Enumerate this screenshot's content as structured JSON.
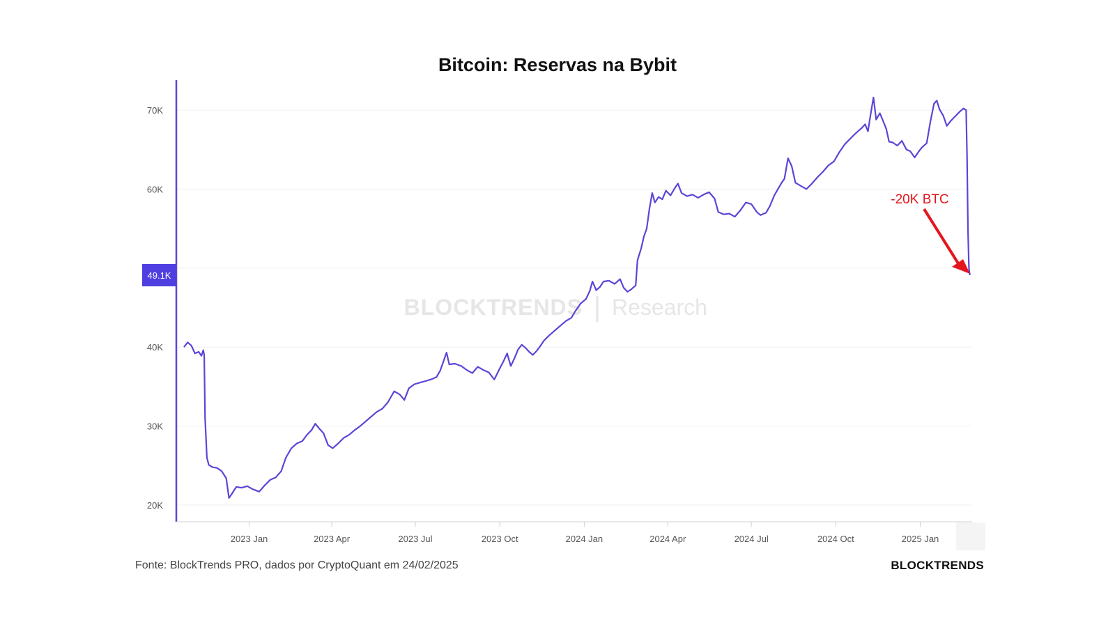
{
  "chart_data": {
    "type": "line",
    "title": "Bitcoin: Reservas na Bybit",
    "xlabel": "",
    "ylabel": "",
    "ylim": [
      18000,
      74000
    ],
    "yticks": [
      20000,
      30000,
      40000,
      60000,
      70000
    ],
    "ytick_labels": [
      "20K",
      "30K",
      "40K",
      "60K",
      "70K"
    ],
    "xticks": [
      "2023-01-01",
      "2023-04-01",
      "2023-07-01",
      "2023-10-01",
      "2024-01-01",
      "2024-04-01",
      "2024-07-01",
      "2024-10-01",
      "2025-01-01"
    ],
    "xtick_labels": [
      "2023 Jan",
      "2023 Apr",
      "2023 Jul",
      "2023 Oct",
      "2024 Jan",
      "2024 Apr",
      "2024 Jul",
      "2024 Oct",
      "2025 Jan"
    ],
    "xlim": [
      "2022-10-22",
      "2025-02-25"
    ],
    "grid": true,
    "current_value_label": "49.1K",
    "current_value": 49100,
    "annotation": {
      "text": "-20K BTC",
      "color": "#e3161b"
    },
    "line_color": "#5a46d6",
    "series": [
      {
        "name": "",
        "points": [
          [
            "2022-10-22",
            40000
          ],
          [
            "2022-10-26",
            40600
          ],
          [
            "2022-10-30",
            40200
          ],
          [
            "2022-11-03",
            39200
          ],
          [
            "2022-11-07",
            39400
          ],
          [
            "2022-11-10",
            38900
          ],
          [
            "2022-11-12",
            39600
          ],
          [
            "2022-11-13",
            39000
          ],
          [
            "2022-11-14",
            31000
          ],
          [
            "2022-11-16",
            26000
          ],
          [
            "2022-11-18",
            25100
          ],
          [
            "2022-11-22",
            24800
          ],
          [
            "2022-11-27",
            24700
          ],
          [
            "2022-12-02",
            24300
          ],
          [
            "2022-12-07",
            23400
          ],
          [
            "2022-12-10",
            20900
          ],
          [
            "2022-12-13",
            21400
          ],
          [
            "2022-12-18",
            22300
          ],
          [
            "2022-12-24",
            22200
          ],
          [
            "2022-12-30",
            22400
          ],
          [
            "2023-01-05",
            22000
          ],
          [
            "2023-01-12",
            21700
          ],
          [
            "2023-01-18",
            22500
          ],
          [
            "2023-01-24",
            23200
          ],
          [
            "2023-01-30",
            23500
          ],
          [
            "2023-02-05",
            24300
          ],
          [
            "2023-02-10",
            26000
          ],
          [
            "2023-02-16",
            27200
          ],
          [
            "2023-02-22",
            27800
          ],
          [
            "2023-02-28",
            28100
          ],
          [
            "2023-03-05",
            28900
          ],
          [
            "2023-03-10",
            29500
          ],
          [
            "2023-03-14",
            30300
          ],
          [
            "2023-03-19",
            29600
          ],
          [
            "2023-03-23",
            29100
          ],
          [
            "2023-03-28",
            27600
          ],
          [
            "2023-04-02",
            27200
          ],
          [
            "2023-04-08",
            27800
          ],
          [
            "2023-04-14",
            28500
          ],
          [
            "2023-04-20",
            28900
          ],
          [
            "2023-04-26",
            29500
          ],
          [
            "2023-05-02",
            30000
          ],
          [
            "2023-05-08",
            30600
          ],
          [
            "2023-05-14",
            31200
          ],
          [
            "2023-05-20",
            31800
          ],
          [
            "2023-05-26",
            32200
          ],
          [
            "2023-06-01",
            33000
          ],
          [
            "2023-06-05",
            33800
          ],
          [
            "2023-06-08",
            34400
          ],
          [
            "2023-06-14",
            34000
          ],
          [
            "2023-06-19",
            33300
          ],
          [
            "2023-06-24",
            34800
          ],
          [
            "2023-06-30",
            35300
          ],
          [
            "2023-07-06",
            35500
          ],
          [
            "2023-07-12",
            35700
          ],
          [
            "2023-07-18",
            35900
          ],
          [
            "2023-07-24",
            36200
          ],
          [
            "2023-07-28",
            37000
          ],
          [
            "2023-08-01",
            38300
          ],
          [
            "2023-08-04",
            39300
          ],
          [
            "2023-08-07",
            37800
          ],
          [
            "2023-08-13",
            37900
          ],
          [
            "2023-08-20",
            37600
          ],
          [
            "2023-08-26",
            37100
          ],
          [
            "2023-09-01",
            36700
          ],
          [
            "2023-09-07",
            37500
          ],
          [
            "2023-09-13",
            37100
          ],
          [
            "2023-09-19",
            36800
          ],
          [
            "2023-09-25",
            35900
          ],
          [
            "2023-10-01",
            37300
          ],
          [
            "2023-10-05",
            38200
          ],
          [
            "2023-10-09",
            39200
          ],
          [
            "2023-10-13",
            37600
          ],
          [
            "2023-10-17",
            38600
          ],
          [
            "2023-10-21",
            39700
          ],
          [
            "2023-10-25",
            40300
          ],
          [
            "2023-10-29",
            39900
          ],
          [
            "2023-11-02",
            39400
          ],
          [
            "2023-11-06",
            39000
          ],
          [
            "2023-11-10",
            39500
          ],
          [
            "2023-11-14",
            40100
          ],
          [
            "2023-11-18",
            40800
          ],
          [
            "2023-11-24",
            41500
          ],
          [
            "2023-11-30",
            42100
          ],
          [
            "2023-12-06",
            42700
          ],
          [
            "2023-12-12",
            43300
          ],
          [
            "2023-12-18",
            43700
          ],
          [
            "2023-12-22",
            44500
          ],
          [
            "2023-12-28",
            45500
          ],
          [
            "2024-01-03",
            46100
          ],
          [
            "2024-01-07",
            47100
          ],
          [
            "2024-01-10",
            48300
          ],
          [
            "2024-01-14",
            47200
          ],
          [
            "2024-01-18",
            47600
          ],
          [
            "2024-01-22",
            48300
          ],
          [
            "2024-01-28",
            48400
          ],
          [
            "2024-02-03",
            48000
          ],
          [
            "2024-02-09",
            48600
          ],
          [
            "2024-02-13",
            47500
          ],
          [
            "2024-02-17",
            47000
          ],
          [
            "2024-02-21",
            47300
          ],
          [
            "2024-02-26",
            47800
          ],
          [
            "2024-02-28",
            51000
          ],
          [
            "2024-03-03",
            52500
          ],
          [
            "2024-03-06",
            54000
          ],
          [
            "2024-03-09",
            55000
          ],
          [
            "2024-03-12",
            57500
          ],
          [
            "2024-03-15",
            59500
          ],
          [
            "2024-03-18",
            58300
          ],
          [
            "2024-03-22",
            59000
          ],
          [
            "2024-03-26",
            58700
          ],
          [
            "2024-03-30",
            59800
          ],
          [
            "2024-04-04",
            59200
          ],
          [
            "2024-04-08",
            60000
          ],
          [
            "2024-04-12",
            60700
          ],
          [
            "2024-04-16",
            59500
          ],
          [
            "2024-04-22",
            59100
          ],
          [
            "2024-04-28",
            59300
          ],
          [
            "2024-05-04",
            58900
          ],
          [
            "2024-05-10",
            59300
          ],
          [
            "2024-05-16",
            59600
          ],
          [
            "2024-05-22",
            58800
          ],
          [
            "2024-05-26",
            57100
          ],
          [
            "2024-06-01",
            56800
          ],
          [
            "2024-06-07",
            56900
          ],
          [
            "2024-06-13",
            56500
          ],
          [
            "2024-06-19",
            57300
          ],
          [
            "2024-06-25",
            58300
          ],
          [
            "2024-07-01",
            58100
          ],
          [
            "2024-07-07",
            57100
          ],
          [
            "2024-07-11",
            56700
          ],
          [
            "2024-07-17",
            57000
          ],
          [
            "2024-07-21",
            57800
          ],
          [
            "2024-07-26",
            59200
          ],
          [
            "2024-07-30",
            60000
          ],
          [
            "2024-08-03",
            60800
          ],
          [
            "2024-08-06",
            61300
          ],
          [
            "2024-08-10",
            63900
          ],
          [
            "2024-08-14",
            62900
          ],
          [
            "2024-08-18",
            60800
          ],
          [
            "2024-08-24",
            60400
          ],
          [
            "2024-08-30",
            60000
          ],
          [
            "2024-09-05",
            60700
          ],
          [
            "2024-09-11",
            61500
          ],
          [
            "2024-09-17",
            62200
          ],
          [
            "2024-09-23",
            63000
          ],
          [
            "2024-09-29",
            63500
          ],
          [
            "2024-10-05",
            64700
          ],
          [
            "2024-10-11",
            65700
          ],
          [
            "2024-10-17",
            66400
          ],
          [
            "2024-10-23",
            67100
          ],
          [
            "2024-10-29",
            67700
          ],
          [
            "2024-11-02",
            68200
          ],
          [
            "2024-11-05",
            67300
          ],
          [
            "2024-11-08",
            69500
          ],
          [
            "2024-11-11",
            71600
          ],
          [
            "2024-11-14",
            68800
          ],
          [
            "2024-11-18",
            69600
          ],
          [
            "2024-11-22",
            68500
          ],
          [
            "2024-11-25",
            67600
          ],
          [
            "2024-11-28",
            66000
          ],
          [
            "2024-12-02",
            65900
          ],
          [
            "2024-12-07",
            65500
          ],
          [
            "2024-12-12",
            66100
          ],
          [
            "2024-12-17",
            65000
          ],
          [
            "2024-12-21",
            64800
          ],
          [
            "2024-12-26",
            64000
          ],
          [
            "2024-12-30",
            64700
          ],
          [
            "2025-01-03",
            65300
          ],
          [
            "2025-01-08",
            65800
          ],
          [
            "2025-01-12",
            68500
          ],
          [
            "2025-01-16",
            70800
          ],
          [
            "2025-01-19",
            71200
          ],
          [
            "2025-01-22",
            70100
          ],
          [
            "2025-01-26",
            69300
          ],
          [
            "2025-01-30",
            68000
          ],
          [
            "2025-02-03",
            68600
          ],
          [
            "2025-02-08",
            69200
          ],
          [
            "2025-02-13",
            69800
          ],
          [
            "2025-02-17",
            70200
          ],
          [
            "2025-02-20",
            70000
          ],
          [
            "2025-02-21",
            64000
          ],
          [
            "2025-02-22",
            55000
          ],
          [
            "2025-02-23",
            50000
          ],
          [
            "2025-02-24",
            49100
          ]
        ]
      }
    ]
  },
  "watermark": {
    "brand": "BLOCKTRENDS",
    "divider": "|",
    "suffix": "Research"
  },
  "footer": {
    "source": "Fonte: BlockTrends PRO, dados por CryptoQuant em 24/02/2025",
    "brand": "BLOCKTRENDS"
  }
}
